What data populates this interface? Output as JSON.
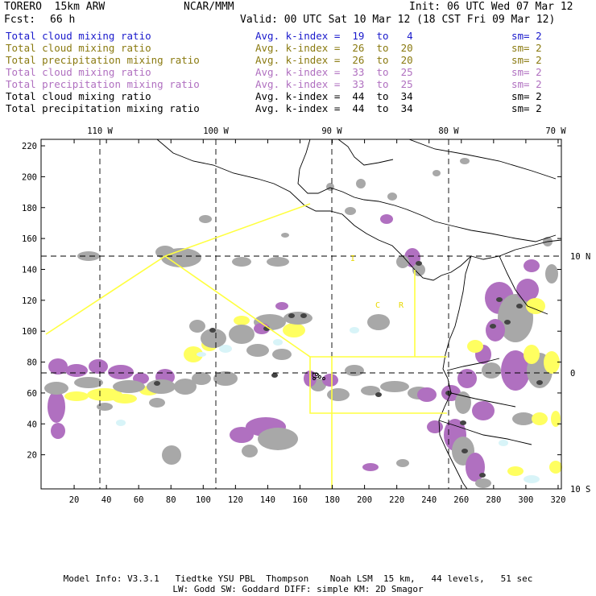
{
  "header": {
    "model": "TORERO  15km ARW",
    "center": "NCAR/MMM",
    "init": "Init: 06 UTC Wed 07 Mar 12",
    "fcst_label": "Fcst:",
    "fcst_value": "66 h",
    "valid": "Valid: 00 UTC Sat 10 Mar 12 (18 CST Fri 09 Mar 12)"
  },
  "legend": [
    {
      "field": "Total cloud mixing ratio",
      "stat": "Avg. k-index =  19  to   4",
      "sm": "sm= 2",
      "color": "#1a1acc"
    },
    {
      "field": "Total cloud mixing ratio",
      "stat": "Avg. k-index =  26  to  20",
      "sm": "sm= 2",
      "color": "#8a7a10"
    },
    {
      "field": "Total precipitation mixing ratio",
      "stat": "Avg. k-index =  26  to  20",
      "sm": "sm= 2",
      "color": "#8a7a10"
    },
    {
      "field": "Total cloud mixing ratio",
      "stat": "Avg. k-index =  33  to  25",
      "sm": "sm= 2",
      "color": "#b070c0"
    },
    {
      "field": "Total precipitation mixing ratio",
      "stat": "Avg. k-index =  33  to  25",
      "sm": "sm= 2",
      "color": "#b070c0"
    },
    {
      "field": "Total cloud mixing ratio",
      "stat": "Avg. k-index =  44  to  34",
      "sm": "sm= 2",
      "color": "#000000"
    },
    {
      "field": "Total precipitation mixing ratio",
      "stat": "Avg. k-index =  44  to  34",
      "sm": "sm= 2",
      "color": "#000000"
    }
  ],
  "top_axis": [
    "110 W",
    "100 W",
    "90 W",
    "80 W",
    "70 W"
  ],
  "right_axis": [
    "10 N",
    "0",
    "10 S"
  ],
  "left_axis": [
    "220",
    "200",
    "180",
    "160",
    "140",
    "120",
    "100",
    "80",
    "60",
    "40",
    "20"
  ],
  "bottom_axis": [
    "20",
    "40",
    "60",
    "80",
    "100",
    "120",
    "140",
    "160",
    "180",
    "200",
    "220",
    "240",
    "260",
    "280",
    "300",
    "320"
  ],
  "map_labels": [
    "I",
    "C",
    "R"
  ],
  "colors": {
    "gray": "#a8a8a8",
    "purple": "#b070c0",
    "yellow": "#ffff60",
    "lightblue": "#d8f4f8",
    "darkgray": "#444444",
    "boundary": "#ffff40"
  },
  "footer": {
    "line1": "Model Info: V3.3.1   Tiedtke YSU PBL  Thompson    Noah LSM  15 km,   44 levels,   51 sec",
    "line2": "LW: Godd SW: Goddard DIFF: simple KM: 2D Smagor"
  }
}
